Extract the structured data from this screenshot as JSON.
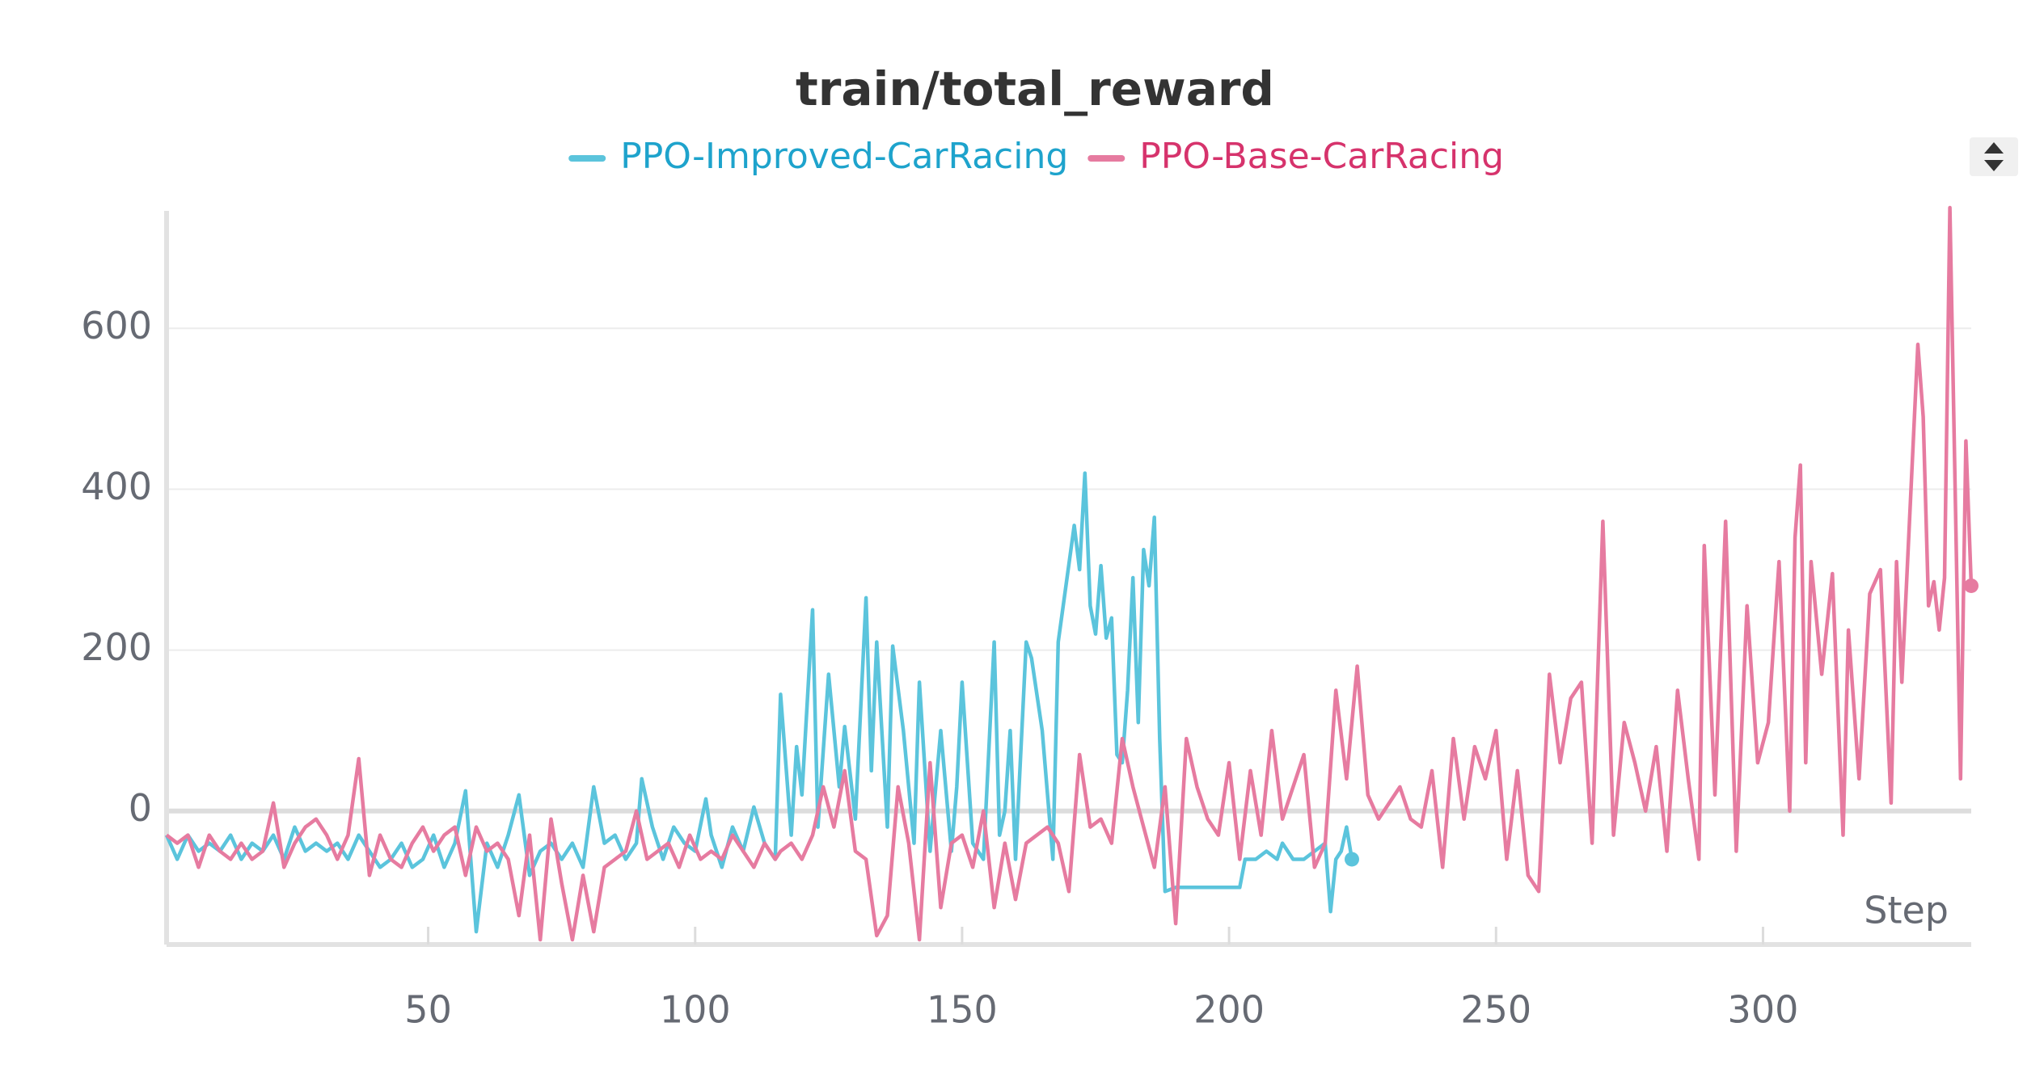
{
  "chart_data": {
    "type": "line",
    "title": "train/total_reward",
    "xlabel": "Step",
    "xlim": [
      1,
      339
    ],
    "ylim": [
      -166,
      746
    ],
    "xticks": [
      50,
      100,
      150,
      200,
      250,
      300
    ],
    "yticks": [
      0,
      200,
      400,
      600
    ],
    "grid": true,
    "series": [
      {
        "name": "PPO-Improved-CarRacing",
        "color": "#5bc4dc",
        "label_color": "#1ea3cc",
        "x": [
          1,
          3,
          5,
          7,
          9,
          11,
          13,
          15,
          17,
          19,
          21,
          23,
          25,
          27,
          29,
          31,
          33,
          35,
          37,
          39,
          41,
          43,
          45,
          47,
          49,
          51,
          53,
          55,
          57,
          59,
          61,
          63,
          65,
          67,
          69,
          71,
          73,
          75,
          77,
          79,
          81,
          83,
          85,
          87,
          89,
          90,
          92,
          94,
          96,
          98,
          100,
          102,
          103,
          105,
          107,
          109,
          111,
          113,
          115,
          116,
          118,
          119,
          120,
          122,
          123,
          125,
          127,
          128,
          130,
          132,
          133,
          134,
          136,
          137,
          139,
          141,
          142,
          144,
          146,
          148,
          149,
          150,
          152,
          154,
          156,
          157,
          158,
          159,
          160,
          162,
          163,
          165,
          166,
          167,
          168,
          171,
          172,
          173,
          174,
          175,
          176,
          177,
          178,
          179,
          180,
          181,
          182,
          183,
          184,
          185,
          186,
          187,
          188,
          190,
          202,
          203,
          205,
          207,
          209,
          210,
          212,
          214,
          216,
          218,
          219,
          220,
          221,
          222,
          223
        ],
        "values": [
          -30,
          -60,
          -30,
          -50,
          -40,
          -50,
          -30,
          -60,
          -40,
          -50,
          -30,
          -60,
          -20,
          -50,
          -40,
          -50,
          -40,
          -60,
          -30,
          -50,
          -70,
          -60,
          -40,
          -70,
          -60,
          -30,
          -70,
          -40,
          25,
          -150,
          -40,
          -70,
          -30,
          20,
          -80,
          -50,
          -40,
          -60,
          -40,
          -70,
          30,
          -40,
          -30,
          -60,
          -40,
          40,
          -20,
          -60,
          -20,
          -40,
          -50,
          15,
          -30,
          -70,
          -20,
          -50,
          5,
          -40,
          -60,
          145,
          -30,
          80,
          20,
          250,
          -20,
          170,
          30,
          105,
          -10,
          265,
          50,
          210,
          -20,
          205,
          100,
          -40,
          160,
          -50,
          100,
          -50,
          30,
          160,
          -40,
          -60,
          210,
          -30,
          0,
          100,
          -60,
          210,
          190,
          100,
          20,
          -60,
          210,
          355,
          300,
          420,
          255,
          220,
          305,
          215,
          240,
          70,
          60,
          150,
          290,
          110,
          325,
          280,
          365,
          90,
          -100,
          -95,
          -95,
          -60,
          -60,
          -50,
          -60,
          -40,
          -60,
          -60,
          -50,
          -40,
          -125,
          -60,
          -50,
          -20,
          -60
        ]
      },
      {
        "name": "PPO-Base-CarRacing",
        "color": "#e67ba0",
        "label_color": "#d6336c",
        "x": [
          1,
          3,
          5,
          7,
          9,
          11,
          13,
          15,
          17,
          19,
          21,
          23,
          25,
          27,
          29,
          31,
          33,
          35,
          37,
          39,
          41,
          43,
          45,
          47,
          49,
          51,
          53,
          55,
          57,
          59,
          61,
          63,
          65,
          67,
          69,
          71,
          73,
          75,
          77,
          79,
          81,
          83,
          85,
          87,
          89,
          91,
          93,
          95,
          97,
          99,
          101,
          103,
          105,
          107,
          109,
          111,
          113,
          115,
          116,
          118,
          120,
          122,
          124,
          126,
          128,
          130,
          132,
          134,
          136,
          138,
          140,
          142,
          144,
          146,
          148,
          150,
          152,
          154,
          156,
          158,
          160,
          162,
          164,
          166,
          168,
          170,
          172,
          174,
          176,
          178,
          180,
          182,
          184,
          186,
          188,
          190,
          192,
          194,
          196,
          198,
          200,
          202,
          204,
          206,
          208,
          210,
          212,
          214,
          216,
          218,
          220,
          222,
          224,
          226,
          228,
          230,
          232,
          234,
          236,
          238,
          240,
          242,
          244,
          246,
          248,
          250,
          252,
          254,
          256,
          258,
          260,
          262,
          264,
          266,
          268,
          270,
          272,
          274,
          276,
          278,
          280,
          282,
          284,
          286,
          288,
          289,
          291,
          293,
          295,
          297,
          299,
          301,
          303,
          305,
          306,
          307,
          308,
          309,
          311,
          313,
          315,
          316,
          318,
          320,
          322,
          324,
          325,
          326,
          327,
          329,
          330,
          331,
          332,
          333,
          334,
          335,
          337,
          338,
          339
        ],
        "values": [
          -30,
          -40,
          -30,
          -70,
          -30,
          -50,
          -60,
          -40,
          -60,
          -50,
          10,
          -70,
          -40,
          -20,
          -10,
          -30,
          -60,
          -30,
          65,
          -80,
          -30,
          -60,
          -70,
          -40,
          -20,
          -50,
          -30,
          -20,
          -80,
          -20,
          -50,
          -40,
          -60,
          -130,
          -30,
          -160,
          -10,
          -90,
          -160,
          -80,
          -150,
          -70,
          -60,
          -50,
          0,
          -60,
          -50,
          -40,
          -70,
          -30,
          -60,
          -50,
          -60,
          -30,
          -50,
          -70,
          -40,
          -60,
          -50,
          -40,
          -60,
          -30,
          30,
          -20,
          50,
          -50,
          -60,
          -155,
          -130,
          30,
          -40,
          -160,
          60,
          -120,
          -40,
          -30,
          -70,
          0,
          -120,
          -40,
          -110,
          -40,
          -30,
          -20,
          -40,
          -100,
          70,
          -20,
          -10,
          -40,
          90,
          30,
          -20,
          -70,
          30,
          -140,
          90,
          30,
          -10,
          -30,
          60,
          -60,
          50,
          -30,
          100,
          -10,
          30,
          70,
          -70,
          -40,
          150,
          40,
          180,
          20,
          -10,
          10,
          30,
          -10,
          -20,
          50,
          -70,
          90,
          -10,
          80,
          40,
          100,
          -60,
          50,
          -80,
          -100,
          170,
          60,
          140,
          160,
          -40,
          360,
          -30,
          110,
          60,
          0,
          80,
          -50,
          150,
          40,
          -60,
          330,
          20,
          360,
          -50,
          255,
          60,
          110,
          310,
          0,
          340,
          430,
          60,
          310,
          170,
          295,
          -30,
          225,
          40,
          270,
          300,
          10,
          310,
          160,
          300,
          580,
          490,
          255,
          285,
          225,
          290,
          750,
          40,
          460,
          280
        ]
      }
    ]
  }
}
